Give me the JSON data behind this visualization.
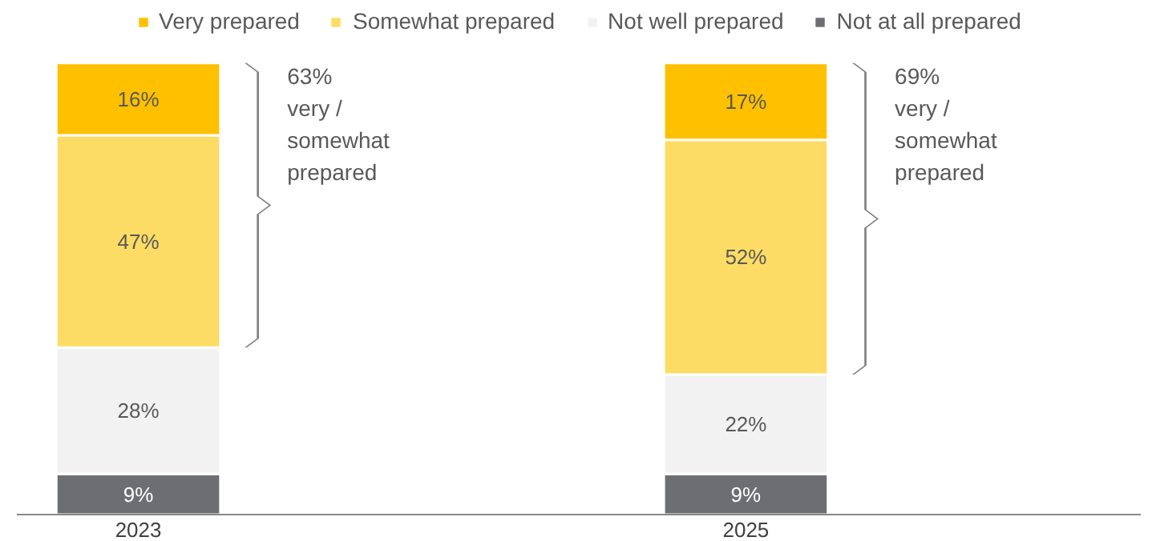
{
  "chart_data": {
    "type": "bar",
    "stacked": true,
    "categories": [
      "2023",
      "2025"
    ],
    "ylim": [
      0,
      100
    ],
    "tick_labels": "x",
    "grid": false,
    "legend": "top",
    "series": [
      {
        "name": "Not at all prepared",
        "color": "#6d6e71",
        "values": [
          9,
          9
        ],
        "value_labels": [
          "9%",
          "9%"
        ]
      },
      {
        "name": "Not well prepared",
        "color": "#f2f2f2",
        "values": [
          28,
          22
        ],
        "value_labels": [
          "28%",
          "22%"
        ]
      },
      {
        "name": "Somewhat prepared",
        "color": "#fcdc64",
        "values": [
          47,
          52
        ],
        "value_labels": [
          "47%",
          "52%"
        ]
      },
      {
        "name": "Very prepared",
        "color": "#ffc000",
        "values": [
          16,
          17
        ],
        "value_labels": [
          "16%",
          "17%"
        ]
      }
    ],
    "annotations": [
      "63%\nvery /\nsomewhat\nprepared",
      "69%\nvery /\nsomewhat\nprepared"
    ]
  }
}
